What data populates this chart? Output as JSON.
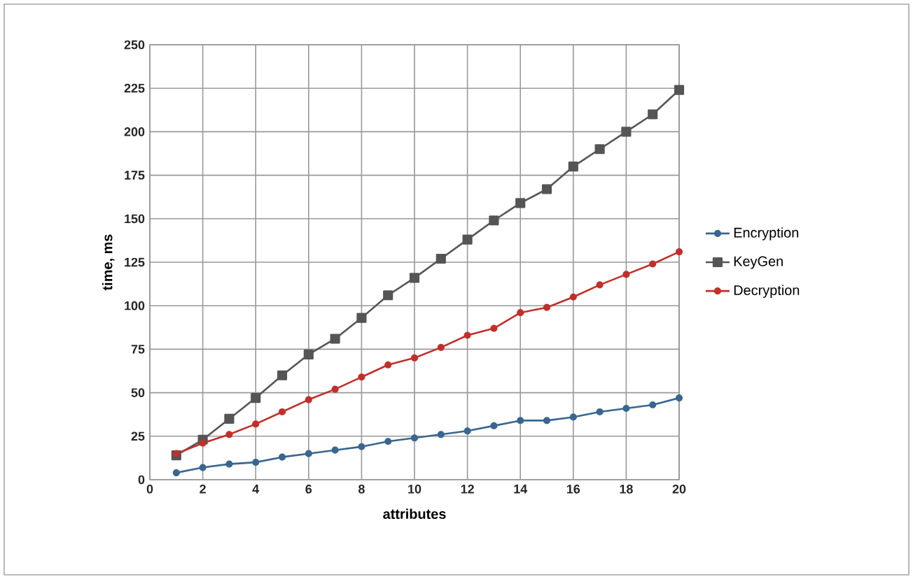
{
  "chart_data": {
    "type": "line",
    "xlabel": "attributes",
    "ylabel": "time, ms",
    "x": [
      1,
      2,
      3,
      4,
      5,
      6,
      7,
      8,
      9,
      10,
      11,
      12,
      13,
      14,
      15,
      16,
      17,
      18,
      19,
      20
    ],
    "xlim": [
      0,
      20
    ],
    "xticks": [
      0,
      2,
      4,
      6,
      8,
      10,
      12,
      14,
      16,
      18,
      20
    ],
    "ylim": [
      0,
      250
    ],
    "yticks": [
      0,
      25,
      50,
      75,
      100,
      125,
      150,
      175,
      200,
      225,
      250
    ],
    "grid": true,
    "legend": "right",
    "line_style": "solid",
    "series": [
      {
        "name": "Encryption",
        "color": "#3a6690",
        "marker": "circle",
        "values": [
          4,
          7,
          9,
          10,
          13,
          15,
          17,
          19,
          22,
          24,
          26,
          28,
          31,
          34,
          34,
          36,
          39,
          41,
          43,
          47
        ]
      },
      {
        "name": "KeyGen",
        "color": "#555555",
        "marker": "square",
        "values": [
          14,
          23,
          35,
          47,
          60,
          72,
          81,
          93,
          106,
          116,
          127,
          138,
          149,
          159,
          167,
          180,
          190,
          200,
          210,
          224
        ]
      },
      {
        "name": "Decryption",
        "color": "#c0302a",
        "marker": "circle",
        "values": [
          15,
          21,
          26,
          32,
          39,
          46,
          52,
          59,
          66,
          70,
          76,
          83,
          87,
          96,
          99,
          105,
          112,
          118,
          124,
          131
        ]
      }
    ]
  }
}
